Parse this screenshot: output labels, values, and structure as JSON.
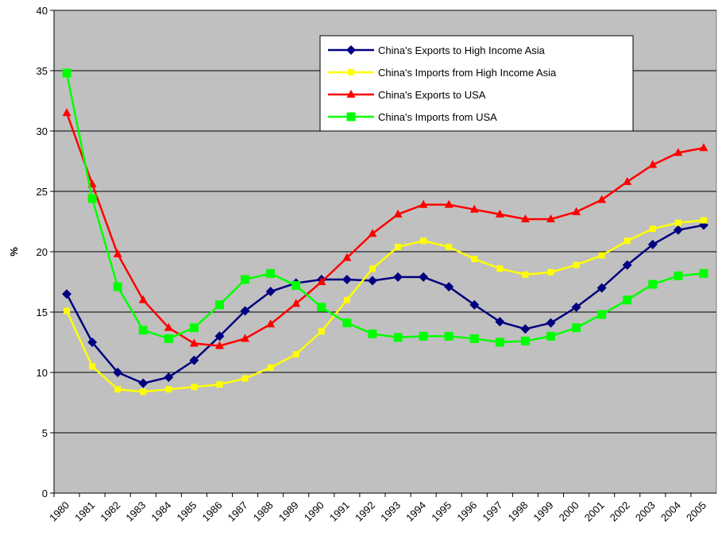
{
  "chart_data": {
    "type": "line",
    "y_label": "%",
    "categories": [
      "1980",
      "1981",
      "1982",
      "1983",
      "1984",
      "1985",
      "1986",
      "1987",
      "1988",
      "1989",
      "1990",
      "1991",
      "1992",
      "1993",
      "1994",
      "1995",
      "1996",
      "1997",
      "1998",
      "1999",
      "2000",
      "2001",
      "2002",
      "2003",
      "2004",
      "2005"
    ],
    "ylim": [
      0,
      40
    ],
    "yticks": [
      0,
      5,
      10,
      15,
      20,
      25,
      30,
      35,
      40
    ],
    "grid": true,
    "series": [
      {
        "name": "China's Exports to High Income Asia",
        "color": "#000080",
        "marker": "diamond",
        "values": [
          16.5,
          12.5,
          10.0,
          9.1,
          9.6,
          11.0,
          13.0,
          15.1,
          16.7,
          17.4,
          17.7,
          17.7,
          17.6,
          17.9,
          17.9,
          17.1,
          15.6,
          14.2,
          13.6,
          14.1,
          15.4,
          17.0,
          18.9,
          20.6,
          21.8,
          22.2
        ]
      },
      {
        "name": "China's Imports from High Income Asia",
        "color": "#ffff00",
        "marker": "square-small",
        "values": [
          15.1,
          10.5,
          8.6,
          8.4,
          8.6,
          8.8,
          9.0,
          9.5,
          10.4,
          11.5,
          13.4,
          16.0,
          18.6,
          20.4,
          20.9,
          20.4,
          19.4,
          18.6,
          18.1,
          18.3,
          18.9,
          19.7,
          20.9,
          21.9,
          22.4,
          22.6
        ]
      },
      {
        "name": "China's Exports to USA",
        "color": "#ff0000",
        "marker": "triangle",
        "values": [
          31.5,
          25.6,
          19.8,
          16.0,
          13.7,
          12.4,
          12.2,
          12.8,
          14.0,
          15.7,
          17.5,
          19.5,
          21.5,
          23.1,
          23.9,
          23.9,
          23.5,
          23.1,
          22.7,
          22.7,
          23.3,
          24.3,
          25.8,
          27.2,
          28.2,
          28.6
        ]
      },
      {
        "name": "China's Imports from USA",
        "color": "#00ff00",
        "marker": "square",
        "values": [
          34.8,
          24.4,
          17.1,
          13.5,
          12.8,
          13.7,
          15.6,
          17.7,
          18.2,
          17.2,
          15.4,
          14.1,
          13.2,
          12.9,
          13.0,
          13.0,
          12.8,
          12.5,
          12.6,
          13.0,
          13.7,
          14.8,
          16.0,
          17.3,
          18.0,
          18.2
        ]
      }
    ]
  }
}
